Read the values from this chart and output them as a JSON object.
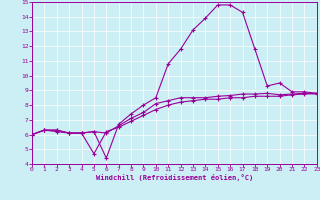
{
  "xlabel": "Windchill (Refroidissement éolien,°C)",
  "bg_color": "#cceef5",
  "line_color": "#990099",
  "grid_color": "#ffffff",
  "xlim": [
    0,
    23
  ],
  "ylim": [
    4,
    15
  ],
  "xticks": [
    0,
    1,
    2,
    3,
    4,
    5,
    6,
    7,
    8,
    9,
    10,
    11,
    12,
    13,
    14,
    15,
    16,
    17,
    18,
    19,
    20,
    21,
    22,
    23
  ],
  "yticks": [
    4,
    5,
    6,
    7,
    8,
    9,
    10,
    11,
    12,
    13,
    14,
    15
  ],
  "line1_x": [
    0,
    1,
    2,
    3,
    4,
    5,
    6,
    7,
    8,
    9,
    10,
    11,
    12,
    13,
    14,
    15,
    16,
    17,
    18,
    19,
    20,
    21,
    22,
    23
  ],
  "line1_y": [
    6.0,
    6.3,
    6.3,
    6.1,
    6.1,
    4.7,
    6.2,
    6.5,
    6.9,
    7.3,
    7.7,
    8.0,
    8.2,
    8.3,
    8.4,
    8.4,
    8.5,
    8.5,
    8.6,
    8.6,
    8.6,
    8.7,
    8.75,
    8.8
  ],
  "line2_x": [
    0,
    1,
    2,
    3,
    4,
    5,
    6,
    7,
    8,
    9,
    10,
    11,
    12,
    13,
    14,
    15,
    16,
    17,
    18,
    19,
    20,
    21,
    22,
    23
  ],
  "line2_y": [
    6.0,
    6.3,
    6.3,
    6.1,
    6.1,
    6.2,
    6.1,
    6.6,
    7.1,
    7.5,
    8.1,
    8.3,
    8.5,
    8.5,
    8.5,
    8.6,
    8.65,
    8.75,
    8.75,
    8.8,
    8.7,
    8.75,
    8.8,
    8.75
  ],
  "line3_x": [
    0,
    1,
    2,
    3,
    4,
    5,
    6,
    7,
    8,
    9,
    10,
    11,
    12,
    13,
    14,
    15,
    16,
    17,
    18,
    19,
    20,
    21,
    22,
    23
  ],
  "line3_y": [
    6.0,
    6.3,
    6.2,
    6.1,
    6.1,
    6.2,
    4.4,
    6.7,
    7.4,
    8.0,
    8.5,
    10.8,
    11.8,
    13.1,
    13.9,
    14.8,
    14.8,
    14.3,
    11.8,
    9.3,
    9.5,
    8.9,
    8.9,
    8.8
  ]
}
